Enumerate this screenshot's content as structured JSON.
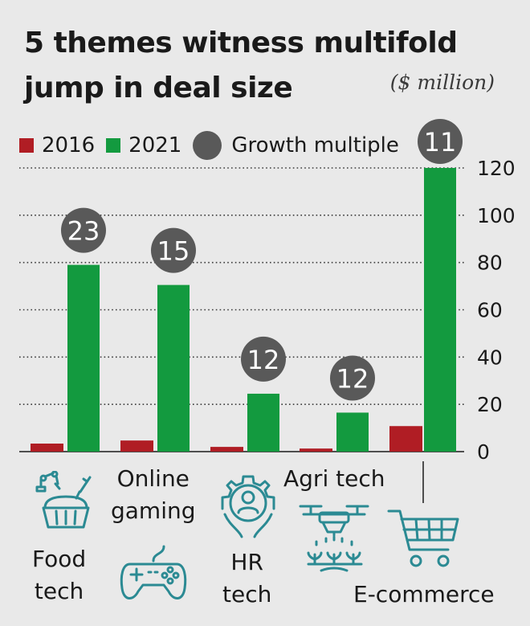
{
  "header": {
    "title_line1": "5 themes witness multifold",
    "title_line2": "jump in deal size",
    "unit": "($ million)"
  },
  "legend": {
    "series_2016": "2016",
    "series_2021": "2021",
    "growth": "Growth multiple"
  },
  "categories": {
    "food_tech": [
      "Food",
      "tech"
    ],
    "online_gaming": [
      "Online",
      "gaming"
    ],
    "hr_tech": [
      "HR",
      "tech"
    ],
    "agri_tech": [
      "Agri tech"
    ],
    "ecommerce": [
      "E-commerce"
    ]
  },
  "colors": {
    "series_2016": "#b01d24",
    "series_2021": "#139a3f",
    "growth": "#595959",
    "icon": "#2b8a93",
    "background": "#e9e9e9"
  },
  "icons": [
    "food-tech-icon",
    "gamepad-icon",
    "hr-gear-icon",
    "drone-icon",
    "shopping-cart-icon"
  ],
  "chart_data": {
    "type": "bar",
    "title": "5 themes witness multifold jump in deal size",
    "ylabel": "($ million)",
    "categories": [
      "Food tech",
      "Online gaming",
      "HR tech",
      "Agri tech",
      "E-commerce"
    ],
    "series": [
      {
        "name": "2016",
        "values": [
          3.4,
          4.7,
          2.0,
          1.3,
          10.8
        ]
      },
      {
        "name": "2021",
        "values": [
          79,
          70.5,
          24.5,
          16.5,
          120
        ]
      }
    ],
    "growth_multiple": [
      23,
      15,
      12,
      12,
      11
    ],
    "ylim": [
      0,
      120
    ],
    "yticks": [
      0,
      20,
      40,
      60,
      80,
      100,
      120
    ],
    "y_axis_side": "right",
    "grid": "dotted horizontal",
    "legend_position": "top-left"
  }
}
